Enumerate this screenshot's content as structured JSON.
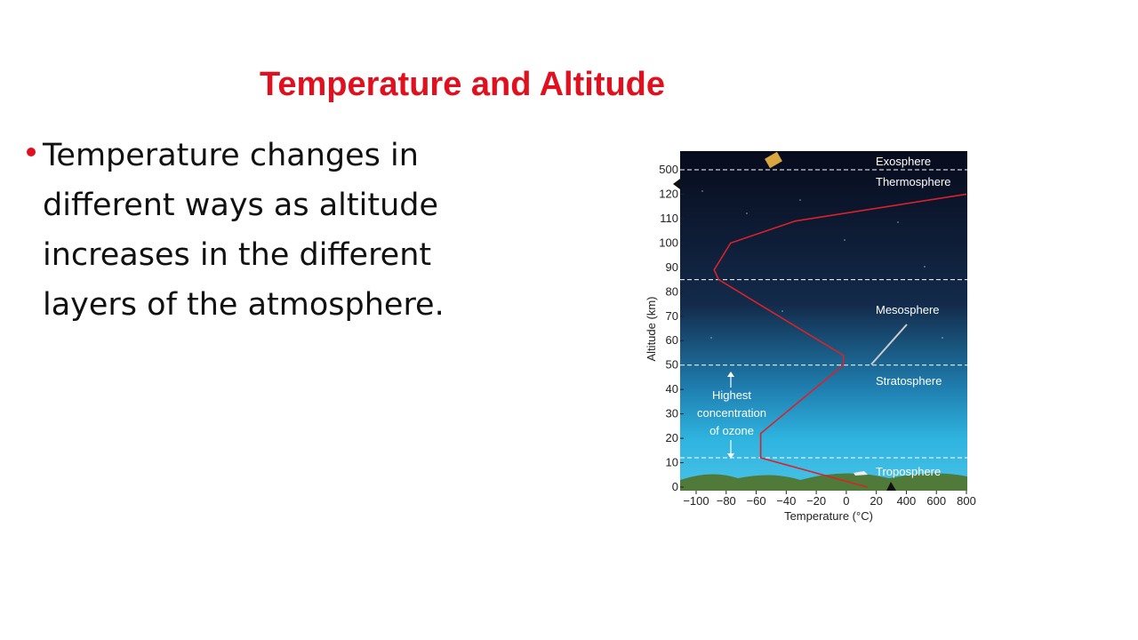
{
  "slide": {
    "title": "Temperature and Altitude",
    "bullets": [
      {
        "lines": [
          "Temperature changes in",
          "different ways as altitude",
          "increases in the different",
          "layers of the atmosphere."
        ]
      }
    ]
  },
  "chart_data": {
    "type": "line",
    "xlabel": "Temperature (°C)",
    "ylabel": "Altitude (km)",
    "x": [
      14,
      -57,
      -57,
      -2,
      -2,
      -85,
      -88,
      -77,
      -34,
      800
    ],
    "series": [
      {
        "color": "#d9222a",
        "values": [
          0,
          12,
          22,
          50,
          54,
          85,
          89,
          100,
          109,
          120
        ]
      }
    ],
    "xlim": [
      -100,
      800
    ],
    "xticks": [
      {
        "value": -100,
        "label": "−100"
      },
      {
        "value": -80,
        "label": "−80"
      },
      {
        "value": -60,
        "label": "−60"
      },
      {
        "value": -40,
        "label": "−40"
      },
      {
        "value": -20,
        "label": "−20"
      },
      0,
      20,
      400,
      600,
      800
    ],
    "ylim": [
      0,
      500
    ],
    "yticks": [
      0,
      10,
      20,
      30,
      40,
      50,
      60,
      70,
      80,
      90,
      100,
      110,
      120,
      500
    ],
    "boundaries": [
      500,
      85,
      50,
      12
    ],
    "layers": [
      "Exosphere",
      "Thermosphere",
      "Mesosphere",
      "Stratosphere",
      "Troposphere"
    ],
    "annotation": [
      "Highest",
      "concentration",
      "of ozone"
    ]
  }
}
